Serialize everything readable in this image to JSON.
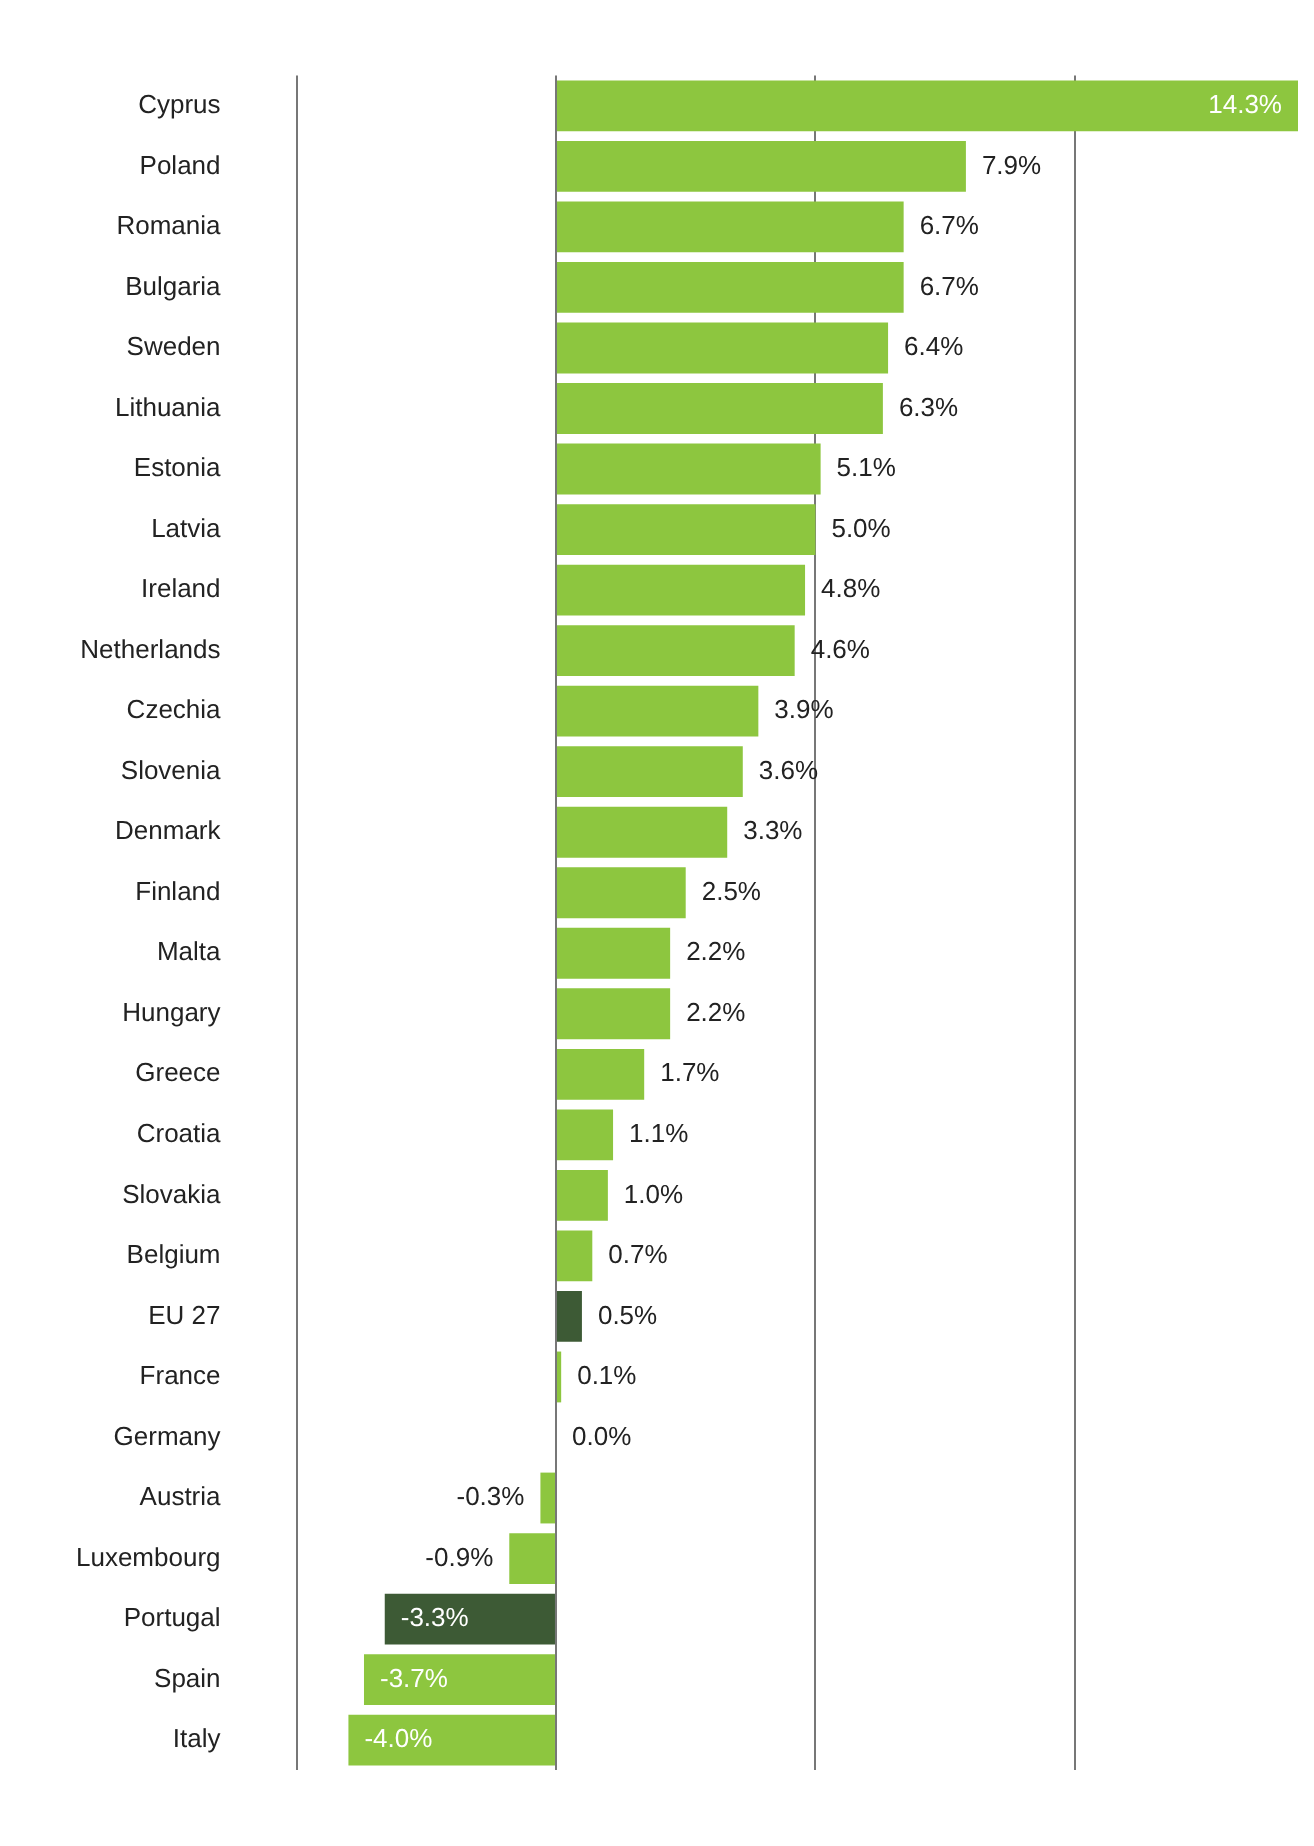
{
  "chart_data": {
    "type": "bar",
    "orientation": "horizontal",
    "categories": [
      "Cyprus",
      "Poland",
      "Romania",
      "Bulgaria",
      "Sweden",
      "Lithuania",
      "Estonia",
      "Latvia",
      "Ireland",
      "Netherlands",
      "Czechia",
      "Slovenia",
      "Denmark",
      "Finland",
      "Malta",
      "Hungary",
      "Greece",
      "Croatia",
      "Slovakia",
      "Belgium",
      "EU 27",
      "France",
      "Germany",
      "Austria",
      "Luxembourg",
      "Portugal",
      "Spain",
      "Italy"
    ],
    "values": [
      14.3,
      7.9,
      6.7,
      6.7,
      6.4,
      6.3,
      5.1,
      5.0,
      4.8,
      4.6,
      3.9,
      3.6,
      3.3,
      2.5,
      2.2,
      2.2,
      1.7,
      1.1,
      1.0,
      0.7,
      0.5,
      0.1,
      0.0,
      -0.3,
      -0.9,
      -3.3,
      -3.7,
      -4.0
    ],
    "value_labels": [
      "14.3%",
      "7.9%",
      "6.7%",
      "6.7%",
      "6.4%",
      "6.3%",
      "5.1%",
      "5.0%",
      "4.8%",
      "4.6%",
      "3.9%",
      "3.6%",
      "3.3%",
      "2.5%",
      "2.2%",
      "2.2%",
      "1.7%",
      "1.1%",
      "1.0%",
      "0.7%",
      "0.5%",
      "0.1%",
      "0.0%",
      "-0.3%",
      "-0.9%",
      "-3.3%",
      "-3.7%",
      "-4.0%"
    ],
    "colors": [
      "#8dc63f",
      "#8dc63f",
      "#8dc63f",
      "#8dc63f",
      "#8dc63f",
      "#8dc63f",
      "#8dc63f",
      "#8dc63f",
      "#8dc63f",
      "#8dc63f",
      "#8dc63f",
      "#8dc63f",
      "#8dc63f",
      "#8dc63f",
      "#8dc63f",
      "#8dc63f",
      "#8dc63f",
      "#8dc63f",
      "#8dc63f",
      "#8dc63f",
      "#3d5a35",
      "#8dc63f",
      "#8dc63f",
      "#8dc63f",
      "#8dc63f",
      "#3d5a35",
      "#8dc63f",
      "#8dc63f"
    ],
    "xlim": [
      -5,
      14.3
    ],
    "xticks": [
      {
        "value": -5,
        "label": null
      },
      {
        "value": 0,
        "label": null
      },
      {
        "value": 5,
        "label": null
      },
      {
        "value": 10,
        "label": null
      }
    ],
    "tick_labels": "y",
    "grid": "x",
    "legend": false
  }
}
